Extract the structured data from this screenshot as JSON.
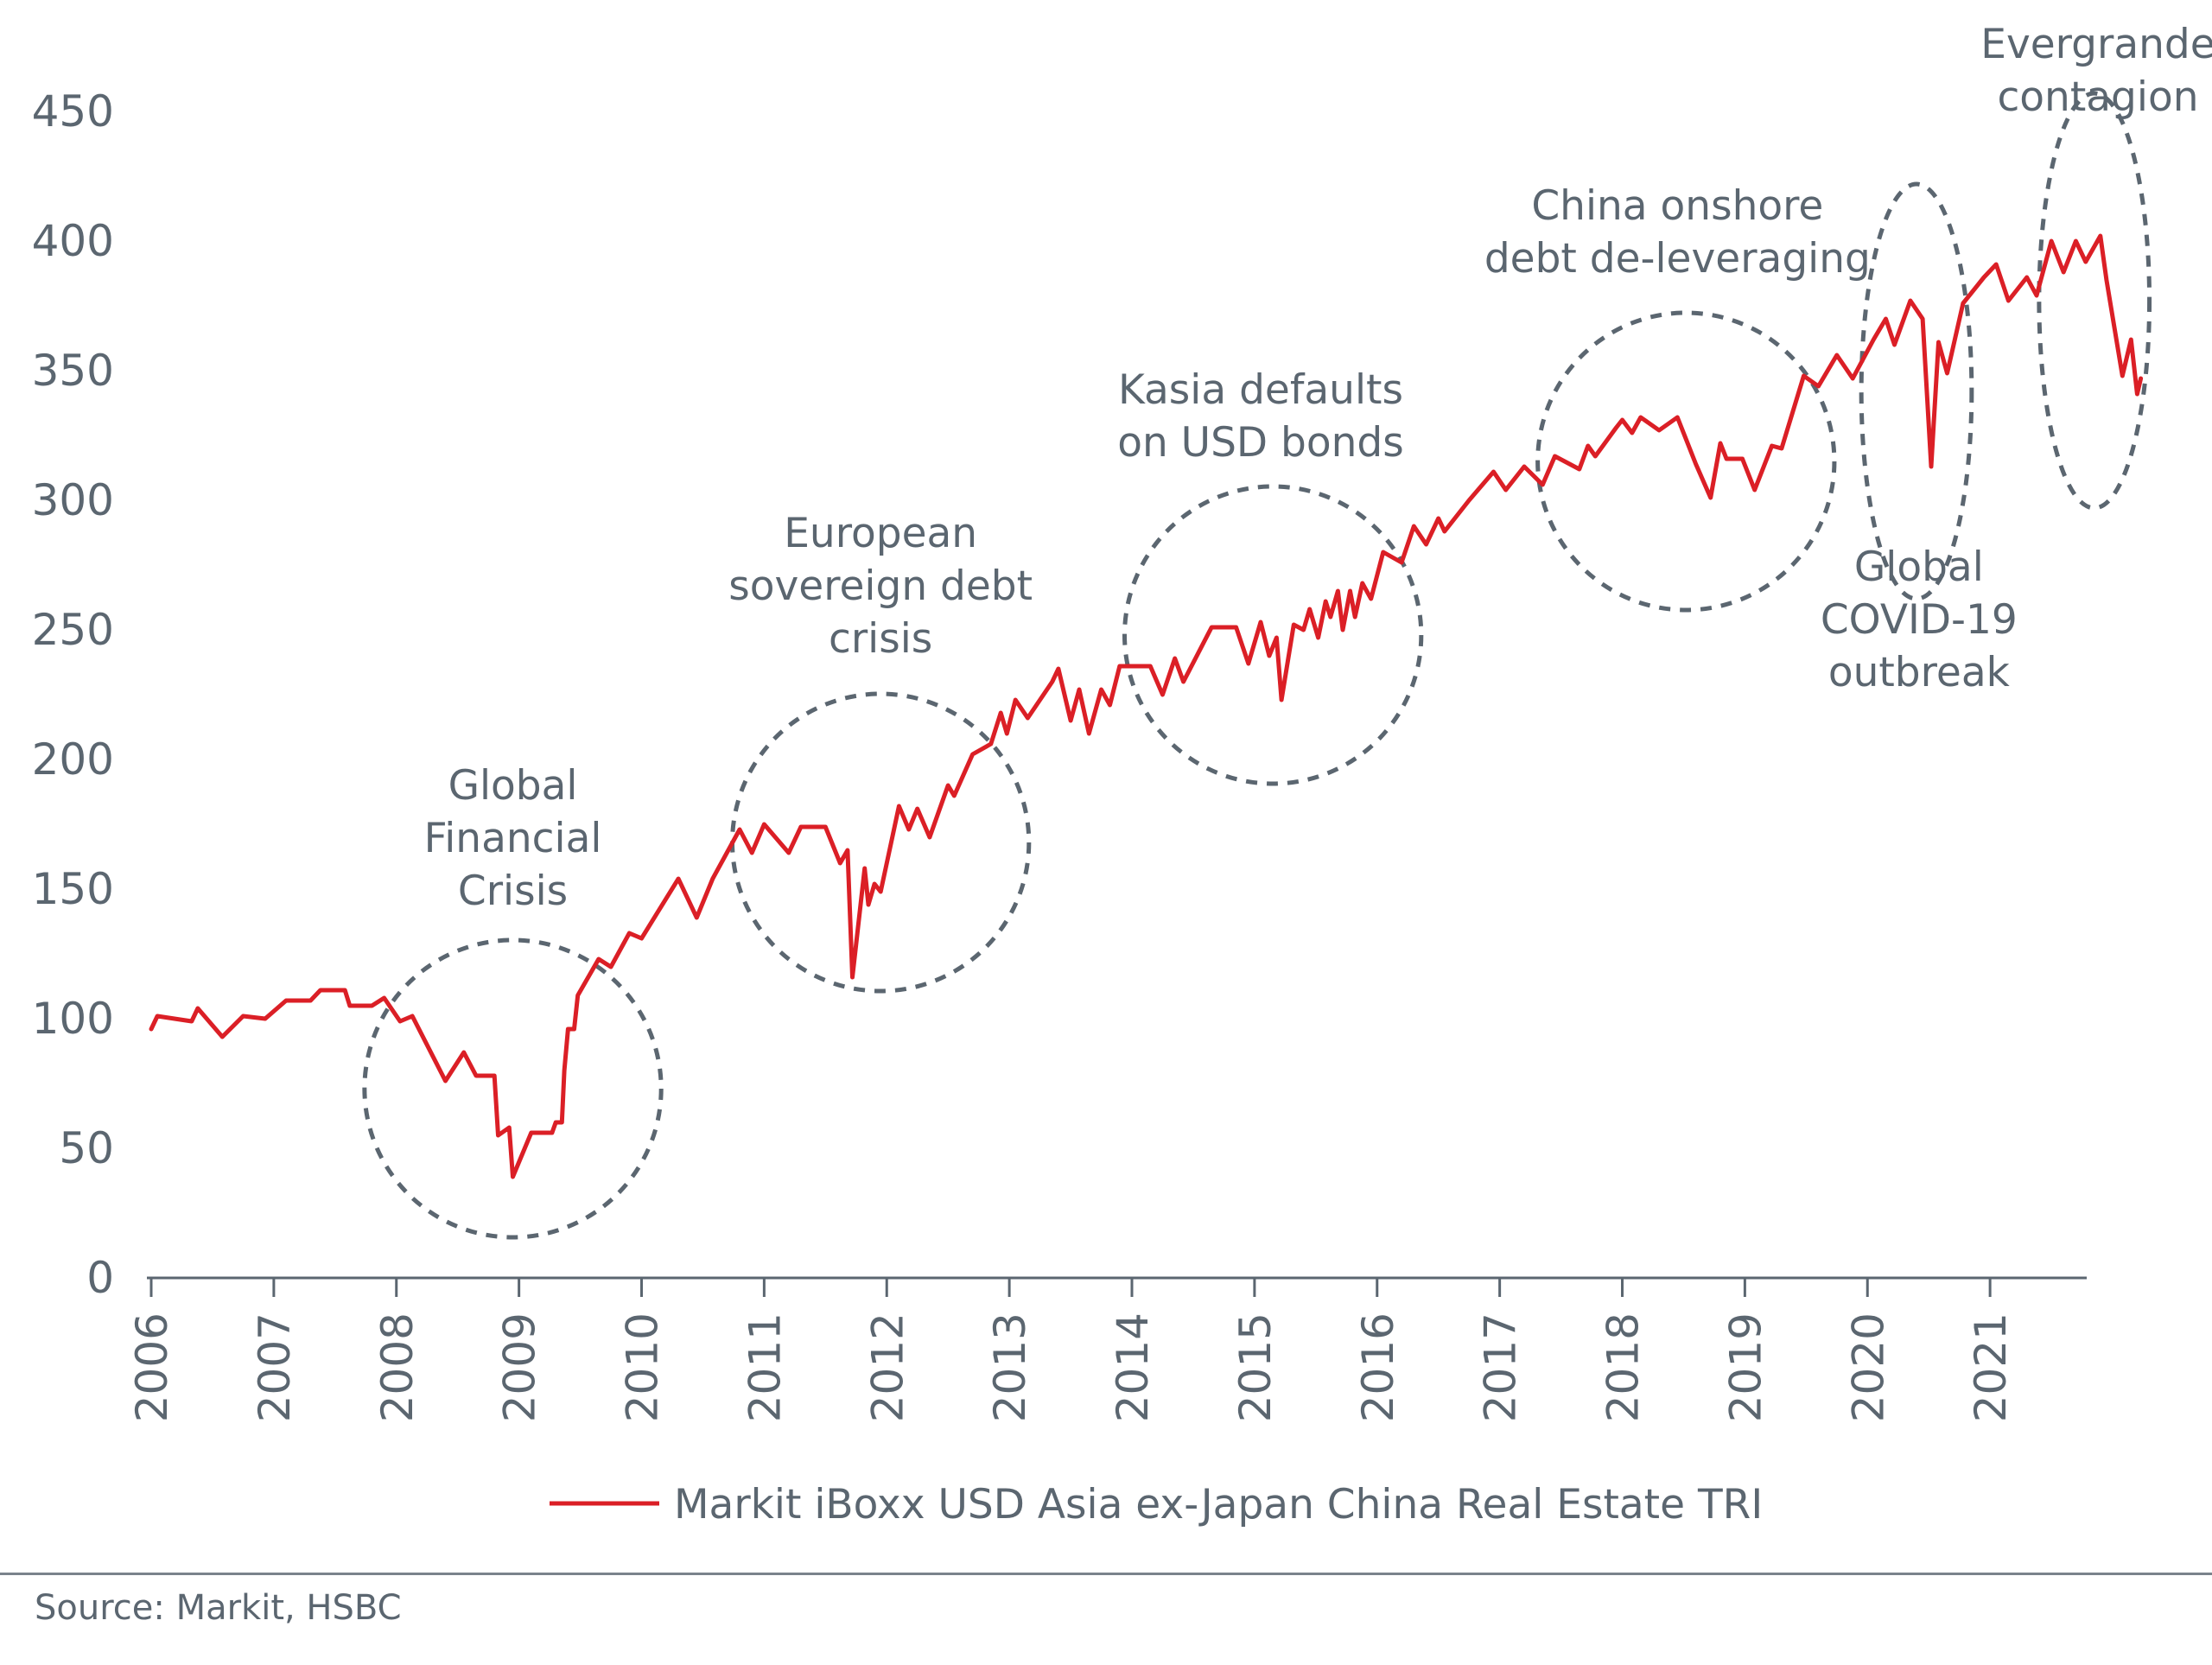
{
  "chart_data": {
    "type": "line",
    "xlim": [
      2006,
      2022
    ],
    "ylim": [
      0,
      450
    ],
    "yticks": [
      "0",
      "50",
      "100",
      "150",
      "200",
      "250",
      "300",
      "350",
      "400",
      "450"
    ],
    "xticks": [
      "2006",
      "2007",
      "2008",
      "2009",
      "2010",
      "2011",
      "2012",
      "2013",
      "2014",
      "2015",
      "2016",
      "2017",
      "2018",
      "2019",
      "2020",
      "2021"
    ],
    "legend_position": "bottom",
    "grid": false,
    "series": [
      {
        "name": "Markit iBoxx USD Asia ex-Japan China Real Estate TRI",
        "color": "#db1f26",
        "points": [
          [
            2006.0,
            96
          ],
          [
            2006.05,
            101
          ],
          [
            2006.33,
            99
          ],
          [
            2006.38,
            104
          ],
          [
            2006.58,
            93
          ],
          [
            2006.75,
            101
          ],
          [
            2006.93,
            100
          ],
          [
            2007.1,
            107
          ],
          [
            2007.3,
            107
          ],
          [
            2007.38,
            111
          ],
          [
            2007.58,
            111
          ],
          [
            2007.62,
            105
          ],
          [
            2007.8,
            105
          ],
          [
            2007.9,
            108
          ],
          [
            2008.03,
            99
          ],
          [
            2008.13,
            101
          ],
          [
            2008.4,
            76
          ],
          [
            2008.55,
            87
          ],
          [
            2008.65,
            78
          ],
          [
            2008.8,
            78
          ],
          [
            2008.83,
            55
          ],
          [
            2008.92,
            58
          ],
          [
            2008.95,
            39
          ],
          [
            2009.1,
            56
          ],
          [
            2009.27,
            56
          ],
          [
            2009.3,
            60
          ],
          [
            2009.35,
            60
          ],
          [
            2009.37,
            80
          ],
          [
            2009.4,
            96
          ],
          [
            2009.45,
            96
          ],
          [
            2009.48,
            109
          ],
          [
            2009.65,
            123
          ],
          [
            2009.75,
            120
          ],
          [
            2009.9,
            133
          ],
          [
            2010.0,
            131
          ],
          [
            2010.3,
            154
          ],
          [
            2010.45,
            139
          ],
          [
            2010.58,
            154
          ],
          [
            2010.8,
            173
          ],
          [
            2010.9,
            164
          ],
          [
            2011.0,
            175
          ],
          [
            2011.2,
            164
          ],
          [
            2011.3,
            174
          ],
          [
            2011.5,
            174
          ],
          [
            2011.62,
            160
          ],
          [
            2011.68,
            165
          ],
          [
            2011.72,
            116
          ],
          [
            2011.82,
            158
          ],
          [
            2011.85,
            144
          ],
          [
            2011.9,
            152
          ],
          [
            2011.95,
            149
          ],
          [
            2012.1,
            182
          ],
          [
            2012.18,
            173
          ],
          [
            2012.25,
            181
          ],
          [
            2012.35,
            170
          ],
          [
            2012.5,
            190
          ],
          [
            2012.55,
            186
          ],
          [
            2012.7,
            202
          ],
          [
            2012.85,
            206
          ],
          [
            2012.93,
            218
          ],
          [
            2012.98,
            210
          ],
          [
            2013.05,
            223
          ],
          [
            2013.15,
            216
          ],
          [
            2013.35,
            230
          ],
          [
            2013.4,
            235
          ],
          [
            2013.5,
            215
          ],
          [
            2013.57,
            227
          ],
          [
            2013.65,
            210
          ],
          [
            2013.75,
            227
          ],
          [
            2013.82,
            221
          ],
          [
            2013.9,
            236
          ],
          [
            2014.0,
            236
          ],
          [
            2014.15,
            236
          ],
          [
            2014.25,
            225
          ],
          [
            2014.35,
            239
          ],
          [
            2014.42,
            230
          ],
          [
            2014.65,
            251
          ],
          [
            2014.85,
            251
          ],
          [
            2014.95,
            237
          ],
          [
            2015.05,
            253
          ],
          [
            2015.12,
            240
          ],
          [
            2015.18,
            247
          ],
          [
            2015.22,
            223
          ],
          [
            2015.32,
            252
          ],
          [
            2015.4,
            250
          ],
          [
            2015.45,
            258
          ],
          [
            2015.52,
            247
          ],
          [
            2015.58,
            261
          ],
          [
            2015.62,
            255
          ],
          [
            2015.68,
            265
          ],
          [
            2015.72,
            250
          ],
          [
            2015.78,
            265
          ],
          [
            2015.82,
            255
          ],
          [
            2015.88,
            268
          ],
          [
            2015.95,
            262
          ],
          [
            2016.05,
            280
          ],
          [
            2016.2,
            276
          ],
          [
            2016.3,
            290
          ],
          [
            2016.4,
            283
          ],
          [
            2016.5,
            293
          ],
          [
            2016.55,
            288
          ],
          [
            2016.75,
            300
          ],
          [
            2016.95,
            311
          ],
          [
            2017.05,
            304
          ],
          [
            2017.2,
            313
          ],
          [
            2017.35,
            306
          ],
          [
            2017.45,
            317
          ],
          [
            2017.65,
            312
          ],
          [
            2017.72,
            321
          ],
          [
            2017.78,
            317
          ],
          [
            2017.95,
            328
          ],
          [
            2018.0,
            331
          ],
          [
            2018.08,
            326
          ],
          [
            2018.15,
            332
          ],
          [
            2018.3,
            327
          ],
          [
            2018.45,
            332
          ],
          [
            2018.6,
            314
          ],
          [
            2018.72,
            301
          ],
          [
            2018.8,
            322
          ],
          [
            2018.85,
            316
          ],
          [
            2018.98,
            316
          ],
          [
            2019.08,
            304
          ],
          [
            2019.22,
            321
          ],
          [
            2019.3,
            320
          ],
          [
            2019.48,
            348
          ],
          [
            2019.6,
            344
          ],
          [
            2019.75,
            356
          ],
          [
            2019.88,
            347
          ],
          [
            2020.05,
            362
          ],
          [
            2020.15,
            370
          ],
          [
            2020.22,
            360
          ],
          [
            2020.35,
            377
          ],
          [
            2020.45,
            370
          ],
          [
            2020.52,
            313
          ],
          [
            2020.58,
            361
          ],
          [
            2020.65,
            349
          ],
          [
            2020.78,
            376
          ],
          [
            2020.95,
            386
          ],
          [
            2021.05,
            391
          ],
          [
            2021.15,
            377
          ],
          [
            2021.3,
            386
          ],
          [
            2021.38,
            379
          ],
          [
            2021.5,
            400
          ],
          [
            2021.6,
            388
          ],
          [
            2021.7,
            400
          ],
          [
            2021.78,
            392
          ],
          [
            2021.9,
            402
          ],
          [
            2021.95,
            385
          ],
          [
            2022.08,
            348
          ],
          [
            2022.15,
            362
          ],
          [
            2022.2,
            341
          ],
          [
            2022.23,
            347
          ]
        ]
      }
    ],
    "annotations": [
      {
        "lines": [
          "Global",
          "Financial",
          "Crisis"
        ],
        "circle": {
          "cx": 2008.95,
          "cy": 73,
          "rx": 1.21,
          "ry": 58
        }
      },
      {
        "lines": [
          "European",
          "sovereign debt",
          "crisis"
        ],
        "circle": {
          "cx": 2011.95,
          "cy": 168,
          "rx": 1.21,
          "ry": 58
        }
      },
      {
        "lines": [
          "Kasia defaults",
          "on USD bonds"
        ],
        "circle": {
          "cx": 2015.15,
          "cy": 248,
          "rx": 1.21,
          "ry": 58
        }
      },
      {
        "lines": [
          "China onshore",
          "debt de-leveraging"
        ],
        "circle": {
          "cx": 2018.52,
          "cy": 315,
          "rx": 1.21,
          "ry": 58
        }
      },
      {
        "lines": [
          "Global",
          "COVID-19",
          "outbreak"
        ],
        "circle": {
          "cx": 2020.4,
          "cy": 342,
          "rx": 0.45,
          "ry": 58
        }
      },
      {
        "lines": [
          "Evergrande",
          "contagion"
        ],
        "circle": {
          "cx": 2021.85,
          "cy": 377,
          "rx": 0.45,
          "ry": 58
        }
      }
    ]
  },
  "source": "Source: Markit, HSBC"
}
